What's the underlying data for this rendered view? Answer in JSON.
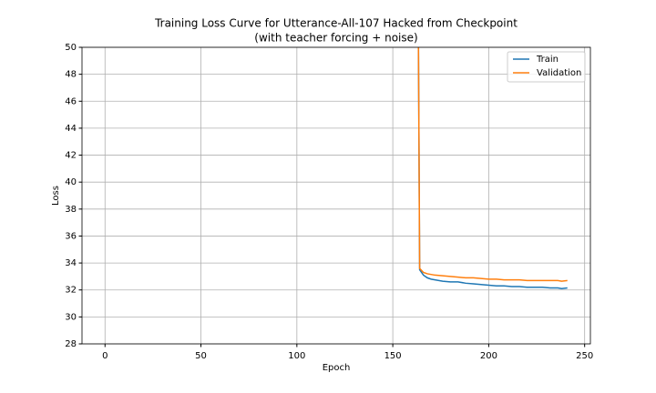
{
  "chart_data": {
    "type": "line",
    "title": "Training Loss Curve for Utterance-All-107 Hacked from Checkpoint",
    "subtitle": "(with teacher forcing + noise)",
    "x_label": "Epoch",
    "y_label": "Loss",
    "x": [
      163,
      164,
      166,
      168,
      170,
      172,
      176,
      180,
      184,
      188,
      192,
      196,
      200,
      204,
      208,
      212,
      216,
      220,
      224,
      228,
      232,
      236,
      238,
      241
    ],
    "series": [
      {
        "name": "Train",
        "color": "#1f77b4",
        "values": [
          60,
          33.5,
          33.1,
          32.9,
          32.8,
          32.75,
          32.65,
          32.6,
          32.6,
          32.5,
          32.45,
          32.4,
          32.35,
          32.3,
          32.3,
          32.25,
          32.25,
          32.2,
          32.2,
          32.2,
          32.15,
          32.15,
          32.1,
          32.15
        ]
      },
      {
        "name": "Validation",
        "color": "#ff7f0e",
        "values": [
          60,
          33.6,
          33.3,
          33.2,
          33.15,
          33.1,
          33.05,
          33.0,
          32.95,
          32.9,
          32.9,
          32.85,
          32.8,
          32.8,
          32.75,
          32.75,
          32.75,
          32.7,
          32.7,
          32.7,
          32.7,
          32.7,
          32.65,
          32.7
        ]
      }
    ],
    "xlim": [
      -12,
      253
    ],
    "ylim": [
      28,
      50
    ],
    "xticks": [
      0,
      50,
      100,
      150,
      200,
      250
    ],
    "yticks": [
      28,
      30,
      32,
      34,
      36,
      38,
      40,
      42,
      44,
      46,
      48,
      50
    ],
    "grid": true,
    "legend": "upper right"
  }
}
